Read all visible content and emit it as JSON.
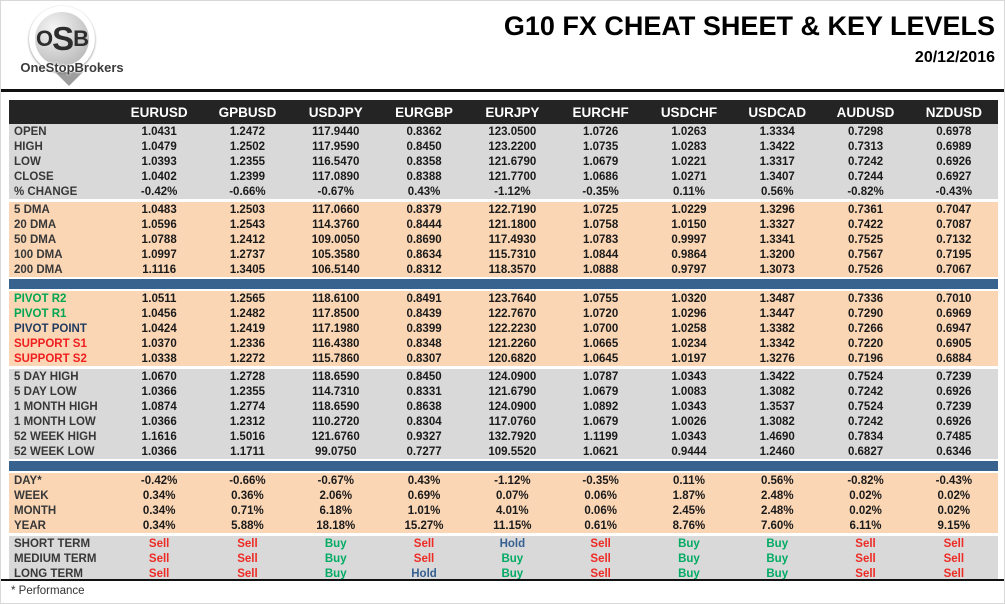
{
  "header": {
    "title": "G10 FX CHEAT SHEET & KEY LEVELS",
    "date": "20/12/2016",
    "logo": {
      "o": "O",
      "s": "S",
      "b": "B",
      "brand": "OneStopBrokers"
    }
  },
  "footer": {
    "note": "* Performance"
  },
  "colors": {
    "header_bg": "#242424",
    "gray_row": "#d9d9d9",
    "peach_row": "#fbd6b5",
    "divider_blue": "#38638e",
    "sell": "#ee2b24",
    "buy": "#00ab64",
    "hold": "#376092",
    "pivot_green": "#00a651",
    "pivot_navy": "#1f3a5f",
    "support_red": "#f01e1e"
  },
  "table": {
    "columns": [
      "EURUSD",
      "GPBUSD",
      "USDJPY",
      "EURGBP",
      "EURJPY",
      "EURCHF",
      "USDCHF",
      "USDCAD",
      "AUDUSD",
      "NZDUSD"
    ],
    "sections": [
      {
        "name": "ohlc",
        "bg": "gray",
        "divider_above": false,
        "rows": [
          {
            "label": "OPEN",
            "values": [
              "1.0431",
              "1.2472",
              "117.9440",
              "0.8362",
              "123.0500",
              "1.0726",
              "1.0263",
              "1.3334",
              "0.7298",
              "0.6978"
            ]
          },
          {
            "label": "HIGH",
            "values": [
              "1.0479",
              "1.2502",
              "117.9590",
              "0.8450",
              "123.2200",
              "1.0735",
              "1.0283",
              "1.3422",
              "0.7313",
              "0.6989"
            ]
          },
          {
            "label": "LOW",
            "values": [
              "1.0393",
              "1.2355",
              "116.5470",
              "0.8358",
              "121.6790",
              "1.0679",
              "1.0221",
              "1.3317",
              "0.7242",
              "0.6926"
            ]
          },
          {
            "label": "CLOSE",
            "values": [
              "1.0402",
              "1.2399",
              "117.0890",
              "0.8388",
              "121.7700",
              "1.0686",
              "1.0271",
              "1.3407",
              "0.7244",
              "0.6927"
            ]
          },
          {
            "label": "% CHANGE",
            "values": [
              "-0.42%",
              "-0.66%",
              "-0.67%",
              "0.43%",
              "-1.12%",
              "-0.35%",
              "0.11%",
              "0.56%",
              "-0.82%",
              "-0.43%"
            ]
          }
        ]
      },
      {
        "name": "dma",
        "bg": "peach",
        "divider_above": false,
        "rows": [
          {
            "label": "5 DMA",
            "values": [
              "1.0483",
              "1.2503",
              "117.0660",
              "0.8379",
              "122.7190",
              "1.0725",
              "1.0229",
              "1.3296",
              "0.7361",
              "0.7047"
            ]
          },
          {
            "label": "20 DMA",
            "values": [
              "1.0596",
              "1.2543",
              "114.3760",
              "0.8444",
              "121.1800",
              "1.0758",
              "1.0150",
              "1.3327",
              "0.7422",
              "0.7087"
            ]
          },
          {
            "label": "50 DMA",
            "values": [
              "1.0788",
              "1.2412",
              "109.0050",
              "0.8690",
              "117.4930",
              "1.0783",
              "0.9997",
              "1.3341",
              "0.7525",
              "0.7132"
            ]
          },
          {
            "label": "100 DMA",
            "values": [
              "1.0997",
              "1.2737",
              "105.3580",
              "0.8634",
              "115.7310",
              "1.0844",
              "0.9864",
              "1.3200",
              "0.7567",
              "0.7195"
            ]
          },
          {
            "label": "200 DMA",
            "values": [
              "1.1116",
              "1.3405",
              "106.5140",
              "0.8312",
              "118.3570",
              "1.0888",
              "0.9797",
              "1.3073",
              "0.7526",
              "0.7067"
            ]
          }
        ]
      },
      {
        "name": "pivots",
        "bg": "peach",
        "divider_above": true,
        "rows": [
          {
            "label": "PIVOT R2",
            "label_color": "#00a651",
            "values": [
              "1.0511",
              "1.2565",
              "118.6100",
              "0.8491",
              "123.7640",
              "1.0755",
              "1.0320",
              "1.3487",
              "0.7336",
              "0.7010"
            ]
          },
          {
            "label": "PIVOT R1",
            "label_color": "#00a651",
            "values": [
              "1.0456",
              "1.2482",
              "117.8500",
              "0.8439",
              "122.7670",
              "1.0720",
              "1.0296",
              "1.3447",
              "0.7290",
              "0.6969"
            ]
          },
          {
            "label": "PIVOT POINT",
            "label_color": "#1f3a5f",
            "values": [
              "1.0424",
              "1.2419",
              "117.1980",
              "0.8399",
              "122.2230",
              "1.0700",
              "1.0258",
              "1.3382",
              "0.7266",
              "0.6947"
            ]
          },
          {
            "label": "SUPPORT S1",
            "label_color": "#f01e1e",
            "values": [
              "1.0370",
              "1.2336",
              "116.4380",
              "0.8348",
              "121.2260",
              "1.0665",
              "1.0234",
              "1.3342",
              "0.7220",
              "0.6905"
            ]
          },
          {
            "label": "SUPPORT S2",
            "label_color": "#f01e1e",
            "values": [
              "1.0338",
              "1.2272",
              "115.7860",
              "0.8307",
              "120.6820",
              "1.0645",
              "1.0197",
              "1.3276",
              "0.7196",
              "0.6884"
            ]
          }
        ]
      },
      {
        "name": "ranges",
        "bg": "gray",
        "divider_above": false,
        "rows": [
          {
            "label": "5 DAY HIGH",
            "values": [
              "1.0670",
              "1.2728",
              "118.6590",
              "0.8450",
              "124.0900",
              "1.0787",
              "1.0343",
              "1.3422",
              "0.7524",
              "0.7239"
            ]
          },
          {
            "label": "5 DAY LOW",
            "values": [
              "1.0366",
              "1.2355",
              "114.7310",
              "0.8331",
              "121.6790",
              "1.0679",
              "1.0083",
              "1.3082",
              "0.7242",
              "0.6926"
            ]
          },
          {
            "label": "1 MONTH HIGH",
            "values": [
              "1.0874",
              "1.2774",
              "118.6590",
              "0.8638",
              "124.0900",
              "1.0892",
              "1.0343",
              "1.3537",
              "0.7524",
              "0.7239"
            ]
          },
          {
            "label": "1 MONTH LOW",
            "values": [
              "1.0366",
              "1.2312",
              "110.2720",
              "0.8304",
              "117.0760",
              "1.0679",
              "1.0026",
              "1.3082",
              "0.7242",
              "0.6926"
            ]
          },
          {
            "label": "52 WEEK HIGH",
            "values": [
              "1.1616",
              "1.5016",
              "121.6760",
              "0.9327",
              "132.7920",
              "1.1199",
              "1.0343",
              "1.4690",
              "0.7834",
              "0.7485"
            ]
          },
          {
            "label": "52 WEEK LOW",
            "values": [
              "1.0366",
              "1.1711",
              "99.0750",
              "0.7277",
              "109.5520",
              "1.0621",
              "0.9444",
              "1.2460",
              "0.6827",
              "0.6346"
            ]
          }
        ]
      },
      {
        "name": "performance",
        "bg": "peach",
        "divider_above": true,
        "rows": [
          {
            "label": "DAY*",
            "values": [
              "-0.42%",
              "-0.66%",
              "-0.67%",
              "0.43%",
              "-1.12%",
              "-0.35%",
              "0.11%",
              "0.56%",
              "-0.82%",
              "-0.43%"
            ]
          },
          {
            "label": "WEEK",
            "values": [
              "0.34%",
              "0.36%",
              "2.06%",
              "0.69%",
              "0.07%",
              "0.06%",
              "1.87%",
              "2.48%",
              "0.02%",
              "0.02%"
            ]
          },
          {
            "label": "MONTH",
            "values": [
              "0.34%",
              "0.71%",
              "6.18%",
              "1.01%",
              "4.01%",
              "0.06%",
              "2.45%",
              "2.48%",
              "0.02%",
              "0.02%"
            ]
          },
          {
            "label": "YEAR",
            "values": [
              "0.34%",
              "5.88%",
              "18.18%",
              "15.27%",
              "11.15%",
              "0.61%",
              "8.76%",
              "7.60%",
              "6.11%",
              "9.15%"
            ]
          }
        ]
      },
      {
        "name": "signals",
        "bg": "gray",
        "divider_above": false,
        "signal": true,
        "rows": [
          {
            "label": "SHORT TERM",
            "values": [
              "Sell",
              "Sell",
              "Buy",
              "Sell",
              "Hold",
              "Sell",
              "Buy",
              "Buy",
              "Sell",
              "Sell"
            ]
          },
          {
            "label": "MEDIUM TERM",
            "values": [
              "Sell",
              "Sell",
              "Buy",
              "Sell",
              "Buy",
              "Sell",
              "Buy",
              "Buy",
              "Sell",
              "Sell"
            ]
          },
          {
            "label": "LONG TERM",
            "values": [
              "Sell",
              "Sell",
              "Buy",
              "Hold",
              "Buy",
              "Sell",
              "Buy",
              "Buy",
              "Sell",
              "Sell"
            ]
          }
        ]
      }
    ]
  }
}
